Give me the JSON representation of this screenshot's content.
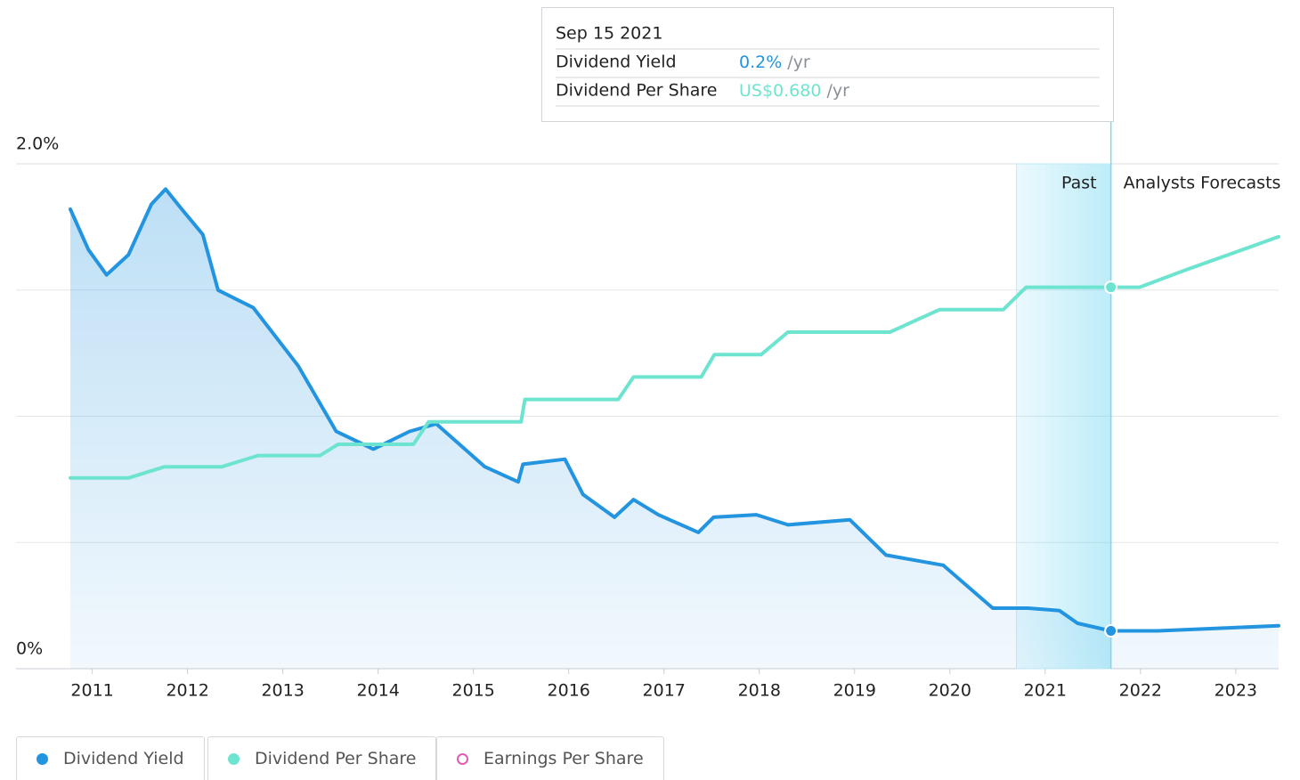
{
  "chart_data": {
    "type": "line",
    "categories_note_free": null,
    "xlim": [
      2010.77,
      2023.45
    ],
    "xticks": [
      2011,
      2012,
      2013,
      2014,
      2015,
      2016,
      2017,
      2018,
      2019,
      2020,
      2021,
      2022,
      2023
    ],
    "ylim": [
      0,
      2
    ],
    "yticks": [
      {
        "value": 0,
        "label": "0%"
      },
      {
        "value": 2,
        "label": "2.0%"
      }
    ],
    "ygrid": [
      0.5,
      1,
      1.5
    ],
    "y2lim": [
      0,
      0.9
    ],
    "series": [
      {
        "name": "Dividend Yield",
        "color": "#2394df",
        "area": true,
        "x": [
          2010.77,
          2010.96,
          2011.15,
          2011.38,
          2011.62,
          2011.77,
          2011.94,
          2012.16,
          2012.32,
          2012.69,
          2013.16,
          2013.56,
          2013.95,
          2014.33,
          2014.61,
          2015.12,
          2015.47,
          2015.52,
          2015.96,
          2016.15,
          2016.48,
          2016.68,
          2016.94,
          2017.36,
          2017.52,
          2017.97,
          2018.3,
          2018.95,
          2019.33,
          2019.93,
          2020.45,
          2020.82,
          2021.15,
          2021.34,
          2021.69,
          2022.18,
          2023.45
        ],
        "values": [
          1.82,
          1.66,
          1.56,
          1.64,
          1.84,
          1.9,
          1.82,
          1.72,
          1.5,
          1.43,
          1.2,
          0.94,
          0.87,
          0.94,
          0.97,
          0.8,
          0.74,
          0.81,
          0.83,
          0.69,
          0.6,
          0.67,
          0.61,
          0.54,
          0.6,
          0.61,
          0.57,
          0.59,
          0.45,
          0.41,
          0.24,
          0.24,
          0.23,
          0.18,
          0.15,
          0.15,
          0.17
        ]
      },
      {
        "name": "Dividend Per Share",
        "color": "#6de4cf",
        "axis": "y2",
        "x": [
          2010.77,
          2011.38,
          2011.76,
          2012.36,
          2012.74,
          2013.39,
          2013.58,
          2014.37,
          2014.53,
          2015.5,
          2015.54,
          2016.52,
          2016.68,
          2017.39,
          2017.53,
          2018.02,
          2018.3,
          2019.37,
          2019.89,
          2020.56,
          2020.8,
          2021.69,
          2021.99,
          2022.46,
          2023.45
        ],
        "values": [
          0.34,
          0.34,
          0.36,
          0.36,
          0.38,
          0.38,
          0.4,
          0.4,
          0.44,
          0.44,
          0.48,
          0.48,
          0.52,
          0.52,
          0.56,
          0.56,
          0.6,
          0.6,
          0.64,
          0.64,
          0.68,
          0.68,
          0.68,
          0.71,
          0.77
        ]
      }
    ],
    "past_range": [
      2020.7,
      2021.69
    ],
    "past_label": "Past",
    "forecast_label": "Analysts Forecasts",
    "cursor_x": 2021.69,
    "tooltip": {
      "date": "Sep 15 2021",
      "rows": [
        {
          "label": "Dividend Yield",
          "value": "0.2%",
          "unit": "/yr",
          "color": "#2394df"
        },
        {
          "label": "Dividend Per Share",
          "value": "US$0.680",
          "unit": "/yr",
          "color": "#6de4cf"
        }
      ]
    },
    "legend": [
      {
        "name": "Dividend Yield",
        "color": "#2394df",
        "filled": true
      },
      {
        "name": "Dividend Per Share",
        "color": "#6de4cf",
        "filled": true
      },
      {
        "name": "Earnings Per Share",
        "color": "#e05cb0",
        "filled": false
      }
    ]
  }
}
